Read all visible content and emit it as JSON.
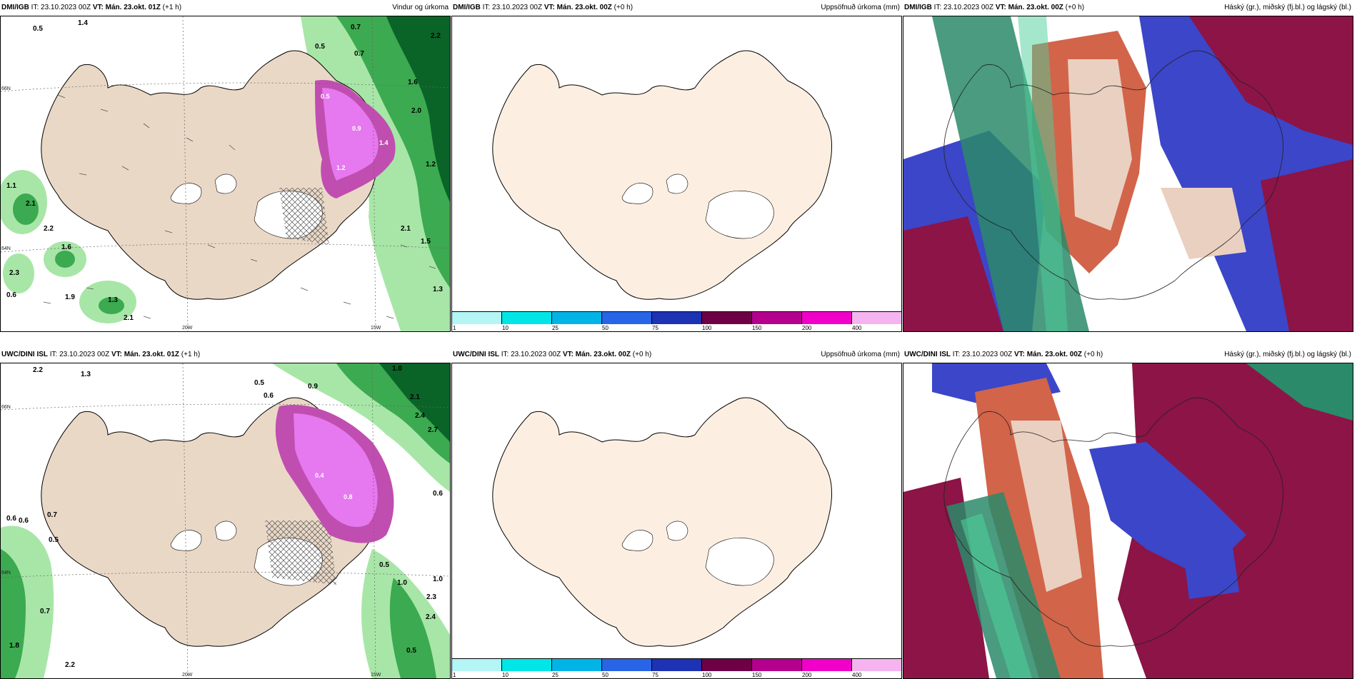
{
  "panels": [
    {
      "id": "p1",
      "model": "DMI/IGB",
      "it_label": "IT:",
      "it_value": "23.10.2023 00Z",
      "vt_label": "VT:",
      "vt_value": "Mán. 23.okt. 01Z",
      "lead": "(+1 h)",
      "product": "Vindur og úrkoma",
      "axis": {
        "x1": "20W",
        "x2": "15W",
        "y1": "66N",
        "y2": "64N"
      },
      "values": [
        "0.5",
        "1.4",
        "0.5",
        "0.7",
        "0.7",
        "2.2",
        "1.6",
        "2.0",
        "1.2",
        "2.1",
        "1.5",
        "1.3",
        "1.1",
        "2.1",
        "2.2",
        "2.3",
        "0.6",
        "1.9",
        "1.3",
        "2.1",
        "1.6",
        "0.5",
        "0.9",
        "1.4",
        "1.2"
      ]
    },
    {
      "id": "p2",
      "model": "DMI/IGB",
      "it_label": "IT:",
      "it_value": "23.10.2023 00Z",
      "vt_label": "VT:",
      "vt_value": "Mán. 23.okt. 00Z",
      "lead": "(+0 h)",
      "product": "Uppsöfnuð úrkoma (mm)"
    },
    {
      "id": "p3",
      "model": "DMI/IGB",
      "it_label": "IT:",
      "it_value": "23.10.2023 00Z",
      "vt_label": "VT:",
      "vt_value": "Mán. 23.okt. 00Z",
      "lead": "(+0 h)",
      "product": "Háský (gr.), miðský (fj.bl.) og lágský (bl.)"
    },
    {
      "id": "p4",
      "model": "UWC/DINI ISL",
      "it_label": "IT:",
      "it_value": "23.10.2023 00Z",
      "vt_label": "VT:",
      "vt_value": "Mán. 23.okt. 01Z",
      "lead": "(+1 h)",
      "product": "",
      "axis": {
        "x1": "20W",
        "x2": "15W",
        "y1": "66N",
        "y2": "64N"
      },
      "values": [
        "2.2",
        "1.3",
        "0.5",
        "0.6",
        "0.9",
        "1.0",
        "2.1",
        "2.4",
        "2.7",
        "0.6",
        "1.0",
        "0.7",
        "0.5",
        "0.6",
        "0.6",
        "0.5",
        "1.0",
        "2.3",
        "2.4",
        "0.5",
        "0.7",
        "2.2",
        "1.8",
        "0.4",
        "0.8"
      ]
    },
    {
      "id": "p5",
      "model": "UWC/DINI ISL",
      "it_label": "IT:",
      "it_value": "23.10.2023 00Z",
      "vt_label": "VT:",
      "vt_value": "Mán. 23.okt. 00Z",
      "lead": "(+0 h)",
      "product": "Uppsöfnuð úrkoma (mm)"
    },
    {
      "id": "p6",
      "model": "UWC/DINI ISL",
      "it_label": "IT:",
      "it_value": "23.10.2023 00Z",
      "vt_label": "VT:",
      "vt_value": "Mán. 23.okt. 00Z",
      "lead": "(+0 h)",
      "product": "Háský (gr.), miðský (fj.bl.) og lágský (bl.)"
    }
  ],
  "colorbar": {
    "labels": [
      "1",
      "10",
      "25",
      "50",
      "75",
      "100",
      "150",
      "200",
      "400"
    ],
    "colors": [
      "#b4f5f5",
      "#00e6e6",
      "#00b4e6",
      "#2864e6",
      "#1e32b4",
      "#6e0046",
      "#b4008c",
      "#f000c8",
      "#f5b4f0"
    ]
  },
  "colors": {
    "land": "#ead8c6",
    "land_light": "#fcefe2",
    "precip_light": "#a8e6a8",
    "precip_mid": "#3caa50",
    "precip_dark": "#0a6428",
    "magenta": "#e678f0",
    "cloud_high": "#2a8a6a",
    "cloud_mid": "#3c46c8",
    "cloud_low_red": "#8c1446",
    "cloud_orange": "#d2644a"
  }
}
